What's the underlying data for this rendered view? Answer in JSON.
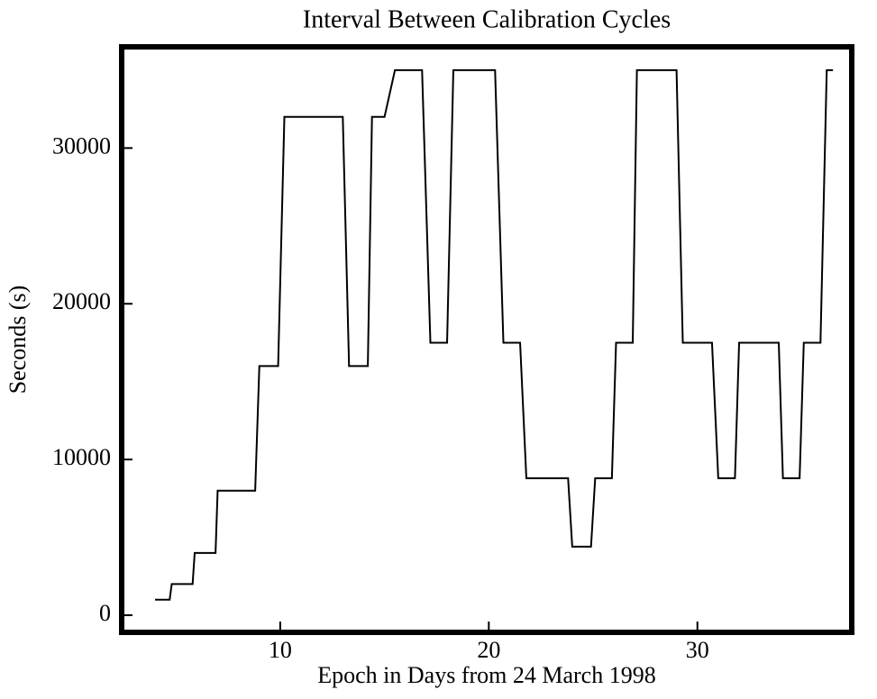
{
  "chart_data": {
    "type": "line",
    "title": "Interval Between Calibration Cycles",
    "xlabel": "Epoch in Days from 24 March 1998",
    "ylabel": "Seconds (s)",
    "x": [
      4.0,
      4.7,
      4.8,
      5.8,
      5.9,
      6.9,
      7.0,
      8.8,
      9.0,
      9.9,
      10.2,
      13.0,
      13.3,
      14.2,
      14.4,
      15.0,
      15.5,
      16.8,
      17.2,
      18.0,
      18.3,
      20.3,
      20.7,
      21.5,
      21.8,
      23.8,
      24.0,
      24.9,
      25.1,
      25.9,
      26.1,
      26.9,
      27.1,
      29.0,
      29.3,
      30.7,
      31.0,
      31.8,
      32.0,
      33.9,
      34.1,
      34.9,
      35.1,
      35.9,
      36.2,
      36.5
    ],
    "values": [
      1000,
      1000,
      2000,
      2000,
      4000,
      4000,
      8000,
      8000,
      16000,
      16000,
      32000,
      32000,
      16000,
      16000,
      32000,
      32000,
      35000,
      35000,
      17500,
      17500,
      35000,
      35000,
      17500,
      17500,
      8800,
      8800,
      4400,
      4400,
      8800,
      8800,
      17500,
      17500,
      35000,
      35000,
      17500,
      17500,
      8800,
      8800,
      17500,
      17500,
      8800,
      8800,
      17500,
      17500,
      35000,
      35000
    ],
    "color": "#000000",
    "xlim": [
      2.4,
      37.4
    ],
    "xticks": [
      10,
      20,
      30
    ],
    "ylim": [
      -1100,
      36500
    ],
    "yticks": [
      0,
      10000,
      20000,
      30000
    ]
  }
}
